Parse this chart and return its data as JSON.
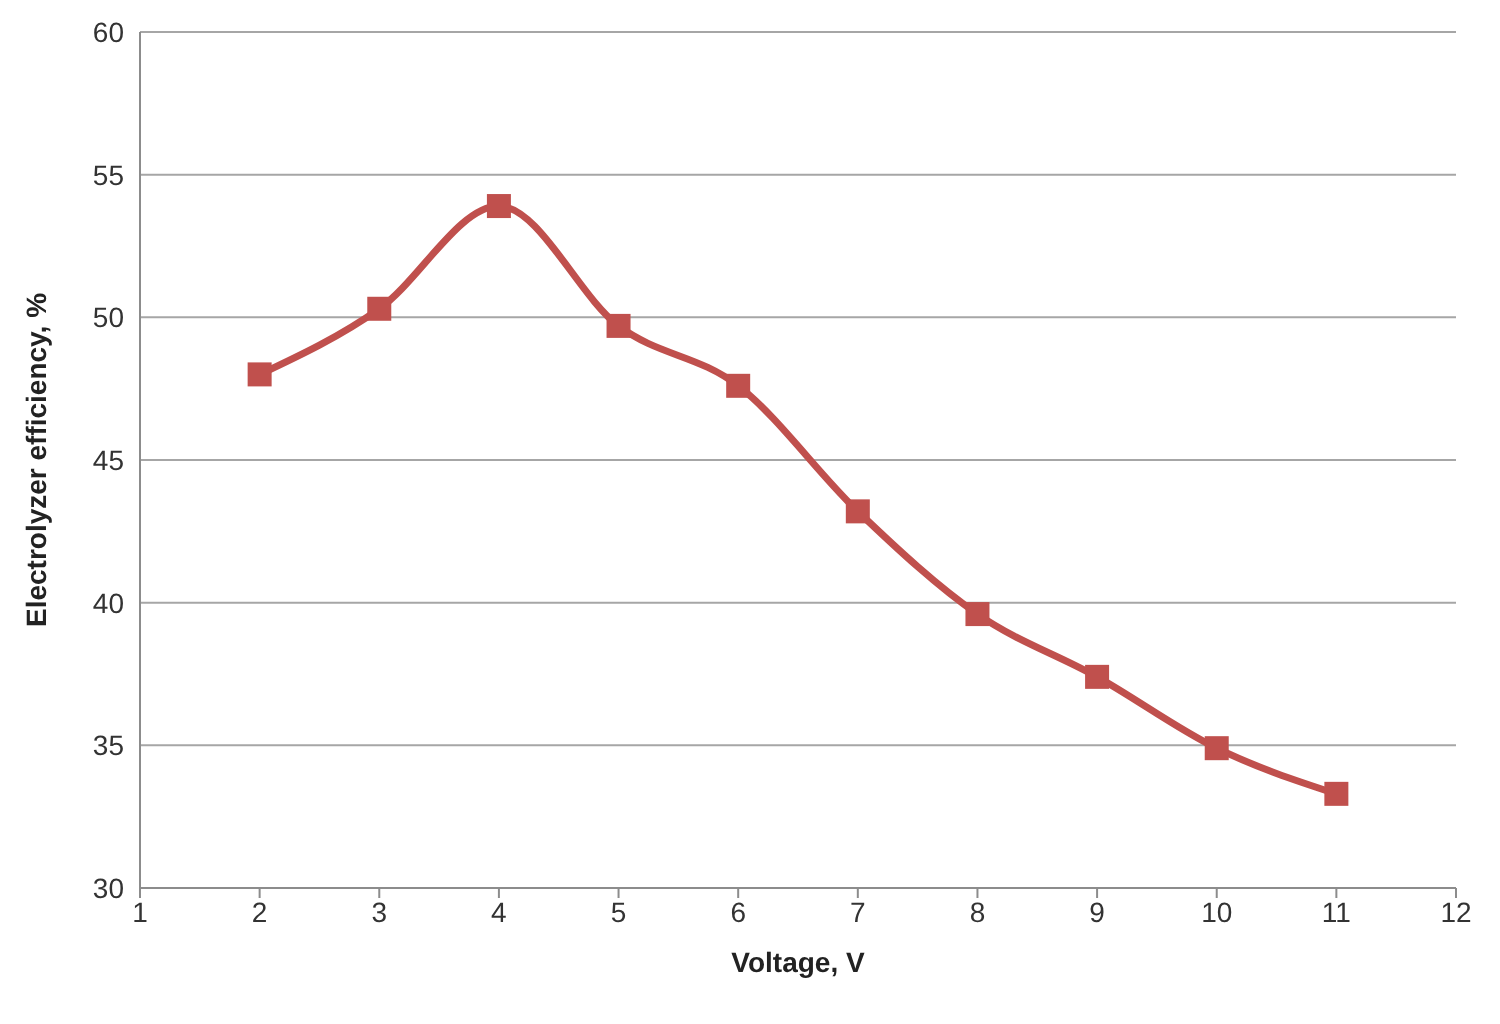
{
  "chart_data": {
    "type": "line",
    "xlabel": "Voltage, V",
    "ylabel": "Electrolyzer efficiency, %",
    "x": [
      2,
      3,
      4,
      5,
      6,
      7,
      8,
      9,
      10,
      11
    ],
    "series": [
      {
        "color": "#c0504d",
        "values": [
          48.0,
          50.3,
          53.9,
          49.7,
          47.6,
          43.2,
          39.6,
          37.4,
          34.9,
          33.3
        ]
      }
    ],
    "xlim": [
      1,
      12
    ],
    "xticks": [
      1,
      2,
      3,
      4,
      5,
      6,
      7,
      8,
      9,
      10,
      11,
      12
    ],
    "ylim": [
      30,
      60
    ],
    "yticks": [
      30,
      35,
      40,
      45,
      50,
      55,
      60
    ],
    "grid": "y",
    "legend": false,
    "marker": "square",
    "line_style": "solid"
  }
}
